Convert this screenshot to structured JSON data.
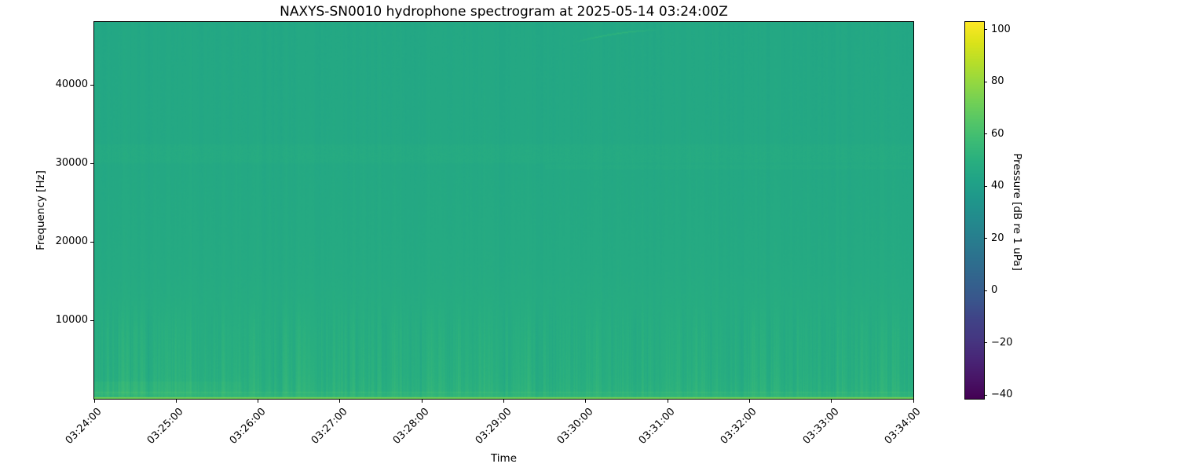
{
  "figure": {
    "background_color": "#ffffff",
    "title": "NAXYS-SN0010 hydrophone spectrogram at 2025-05-14 03:24:00Z"
  },
  "chart_data": {
    "type": "heatmap",
    "subtype": "spectrogram",
    "title": "NAXYS-SN0010 hydrophone spectrogram at 2025-05-14 03:24:00Z",
    "xlabel": "Time",
    "ylabel": "Frequency [Hz]",
    "x_axis": {
      "start_time": "03:24:00",
      "end_time": "03:34:00",
      "tick_interval_seconds": 60,
      "tick_labels": [
        "03:24:00",
        "03:25:00",
        "03:26:00",
        "03:27:00",
        "03:28:00",
        "03:29:00",
        "03:30:00",
        "03:31:00",
        "03:32:00",
        "03:33:00",
        "03:34:00"
      ]
    },
    "y_axis": {
      "range_hz": [
        0,
        48000
      ],
      "ticks": [
        {
          "value": 10000,
          "label": "10000"
        },
        {
          "value": 20000,
          "label": "20000"
        },
        {
          "value": 30000,
          "label": "30000"
        },
        {
          "value": 40000,
          "label": "40000"
        }
      ]
    },
    "colorbar": {
      "label": "Pressure [dB re 1 uPa]",
      "vmin": -41.5,
      "vmax": 103,
      "ticks": [
        {
          "value": 100,
          "label": "100"
        },
        {
          "value": 80,
          "label": "80"
        },
        {
          "value": 60,
          "label": "60"
        },
        {
          "value": 40,
          "label": "40"
        },
        {
          "value": 20,
          "label": "20"
        },
        {
          "value": 0,
          "label": "0"
        },
        {
          "value": -20,
          "label": "−20"
        },
        {
          "value": -40,
          "label": "−40"
        }
      ]
    },
    "colormap": {
      "name": "viridis",
      "stops": [
        "#440154",
        "#481567",
        "#482677",
        "#453781",
        "#404387",
        "#39568c",
        "#33638d",
        "#2d708e",
        "#287d8e",
        "#238a8d",
        "#1f968b",
        "#20a387",
        "#29af7f",
        "#3cbb75",
        "#55c667",
        "#73d055",
        "#95d840",
        "#b8de29",
        "#dce319",
        "#fde725"
      ]
    },
    "spectrogram": {
      "description": "Broadband ambient noise around 45-52 dB (teal-green); brighter below ~13 kHz with vertical striations; speckled bands near 30-32.5 kHz and 29.5 kHz (right half); strong tonal lines below ~1 kHz; faint upsweep chirp near 03:30 at ~46 kHz.",
      "seed": 7,
      "noise_floor_profile_db": [
        {
          "freq_hz": 0,
          "db": 56.0
        },
        {
          "freq_hz": 400,
          "db": 53.0
        },
        {
          "freq_hz": 1000,
          "db": 51.0
        },
        {
          "freq_hz": 3000,
          "db": 49.6
        },
        {
          "freq_hz": 8000,
          "db": 48.6
        },
        {
          "freq_hz": 12000,
          "db": 47.8
        },
        {
          "freq_hz": 16000,
          "db": 46.9
        },
        {
          "freq_hz": 22000,
          "db": 46.3
        },
        {
          "freq_hz": 28000,
          "db": 45.9
        },
        {
          "freq_hz": 34000,
          "db": 45.5
        },
        {
          "freq_hz": 48000,
          "db": 45.2
        }
      ],
      "striations": {
        "std_db": 0.8,
        "low_band_below_hz": 13000,
        "low_band_extra_gain": 2.2,
        "pixel_noise_db": 0.9
      },
      "features": [
        {
          "kind": "speckle_band",
          "f_lo_hz": 29800,
          "f_hi_hz": 32600,
          "boost_db": 1.2,
          "speckle_db": 1.5,
          "t_from_frac": 0.0
        },
        {
          "kind": "speckle_band",
          "f_lo_hz": 29200,
          "f_hi_hz": 29900,
          "boost_db": 1.2,
          "speckle_db": 1.0,
          "t_from_frac": 0.55
        },
        {
          "kind": "tonal_line",
          "freq_hz": 120,
          "half_bw_hz": 120,
          "level_db": 73
        },
        {
          "kind": "tonal_line",
          "freq_hz": 800,
          "half_bw_hz": 120,
          "boost_db": 5
        },
        {
          "kind": "patch",
          "t_from_frac": 0.0,
          "t_to_frac": 0.18,
          "f_lo_hz": 500,
          "f_hi_hz": 2200,
          "boost_db": 2.2
        },
        {
          "kind": "chirp_arc",
          "t_center_frac": 0.637,
          "f_start_hz": 45500,
          "f_sweep_hz": 1500,
          "duration_frac": 0.1,
          "boost_db": 7
        }
      ]
    }
  }
}
